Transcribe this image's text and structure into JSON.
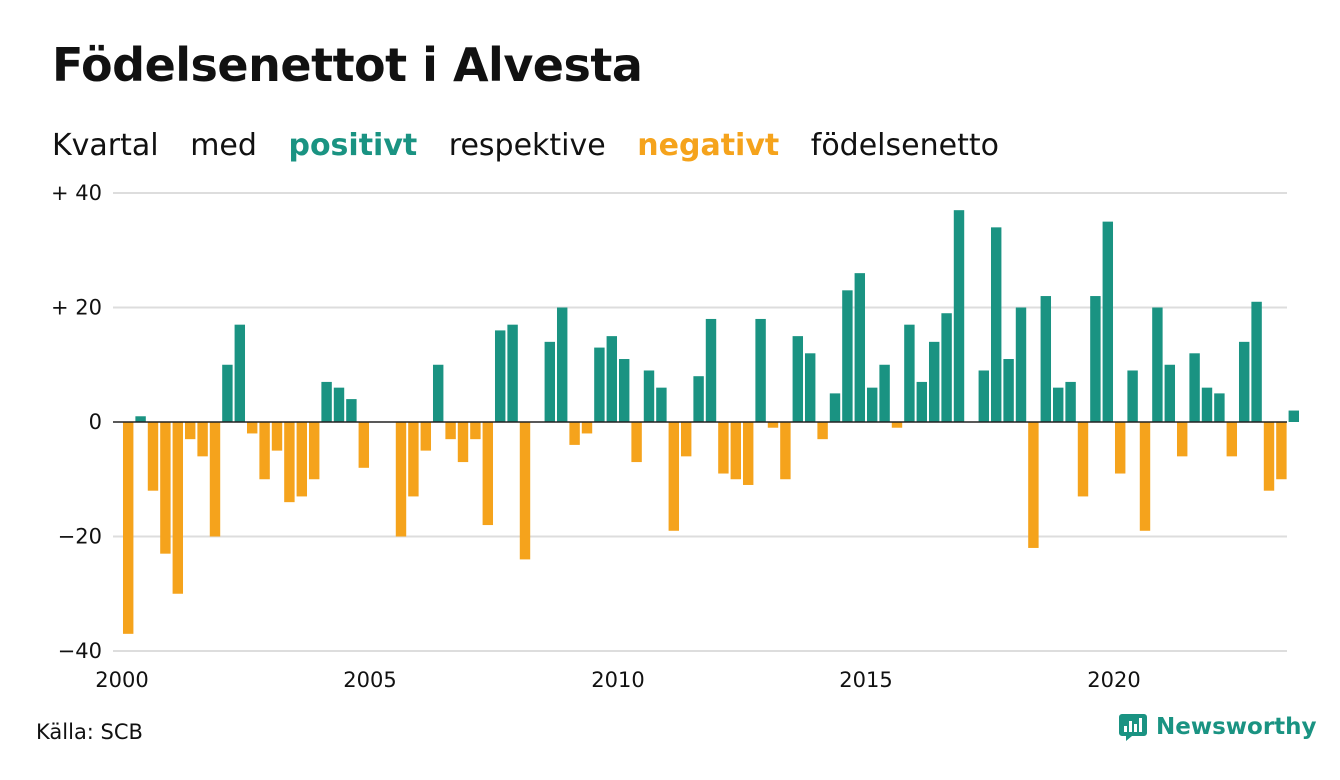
{
  "title": "Födelsenettot i Alvesta",
  "subtitle": {
    "w1": "Kvartal",
    "w2": "med",
    "positive": "positivt",
    "w3": "respektive",
    "negative": "negativt",
    "w4": "födelsenetto"
  },
  "source": "Källa: SCB",
  "brand": "Newsworthy",
  "colors": {
    "positive": "#1a9382",
    "negative": "#f5a31c",
    "grid": "#dddddd",
    "brand": "#1a9382"
  },
  "chart_data": {
    "type": "bar",
    "title": "Födelsenettot i Alvesta",
    "x_start": 2000,
    "periods_per_year": 4,
    "ylim": [
      -40,
      40
    ],
    "yticks": [
      {
        "value": 40,
        "label": "+ 40"
      },
      {
        "value": 20,
        "label": "+ 20"
      },
      {
        "value": 0,
        "label": "0"
      },
      {
        "value": -20,
        "label": "−20"
      },
      {
        "value": -40,
        "label": "−40"
      }
    ],
    "xticks": [
      {
        "value": 2000,
        "label": "2000"
      },
      {
        "value": 2005,
        "label": "2005"
      },
      {
        "value": 2010,
        "label": "2010"
      },
      {
        "value": 2015,
        "label": "2015"
      },
      {
        "value": 2020,
        "label": "2020"
      }
    ],
    "grid": true,
    "values": [
      -37,
      1,
      -12,
      -23,
      -30,
      -3,
      -6,
      -20,
      10,
      17,
      -2,
      -10,
      -5,
      -14,
      -13,
      -10,
      7,
      6,
      4,
      -8,
      0,
      0,
      -20,
      -13,
      -5,
      10,
      -3,
      -7,
      -3,
      -18,
      16,
      17,
      -24,
      0,
      14,
      20,
      -4,
      -2,
      13,
      15,
      11,
      -7,
      9,
      6,
      -19,
      -6,
      8,
      18,
      -9,
      -10,
      -11,
      18,
      -1,
      -10,
      15,
      12,
      -3,
      5,
      23,
      26,
      6,
      10,
      -1,
      17,
      7,
      14,
      19,
      37,
      0,
      9,
      34,
      11,
      20,
      -22,
      22,
      6,
      7,
      -13,
      22,
      35,
      -9,
      9,
      -19,
      20,
      10,
      -6,
      12,
      6,
      5,
      -6,
      14,
      21,
      -12,
      -10,
      2
    ]
  }
}
